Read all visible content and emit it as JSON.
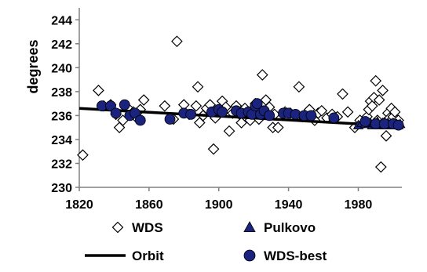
{
  "chart_data": {
    "type": "scatter",
    "ylabel": "degrees",
    "xlabel": "",
    "xlim": [
      1820,
      2005
    ],
    "ylim": [
      230,
      245
    ],
    "x_ticks": [
      "1820",
      "1860",
      "1900",
      "1940",
      "1980"
    ],
    "y_ticks": [
      "230",
      "232",
      "234",
      "236",
      "238",
      "240",
      "242",
      "244"
    ],
    "grid": false,
    "legend_position": "bottom",
    "legend": [
      {
        "label": "WDS",
        "marker": "open-diamond"
      },
      {
        "label": "Pulkovo",
        "marker": "filled-triangle"
      },
      {
        "label": "Orbit",
        "marker": "line"
      },
      {
        "label": "WDS-best",
        "marker": "filled-circle"
      }
    ],
    "colors": {
      "WDS-best": "#1a237e",
      "Pulkovo": "#1a237e",
      "Orbit": "#000000",
      "WDS": "#000000"
    },
    "series": [
      {
        "name": "WDS",
        "points": [
          [
            1822,
            232.7
          ],
          [
            1831,
            238.1
          ],
          [
            1834,
            236.8
          ],
          [
            1838,
            236.9
          ],
          [
            1841,
            236.1
          ],
          [
            1843,
            235.0
          ],
          [
            1845,
            235.6
          ],
          [
            1848,
            236.6
          ],
          [
            1851,
            236.3
          ],
          [
            1853,
            235.8
          ],
          [
            1855,
            236.5
          ],
          [
            1857,
            237.3
          ],
          [
            1869,
            236.8
          ],
          [
            1874,
            235.7
          ],
          [
            1876,
            242.2
          ],
          [
            1880,
            236.9
          ],
          [
            1883,
            236.1
          ],
          [
            1887,
            236.8
          ],
          [
            1888,
            238.4
          ],
          [
            1889,
            235.4
          ],
          [
            1891,
            236.0
          ],
          [
            1893,
            236.6
          ],
          [
            1895,
            236.9
          ],
          [
            1897,
            233.2
          ],
          [
            1898,
            235.8
          ],
          [
            1899,
            236.3
          ],
          [
            1902,
            237.2
          ],
          [
            1904,
            236.7
          ],
          [
            1906,
            234.7
          ],
          [
            1908,
            236.2
          ],
          [
            1910,
            236.8
          ],
          [
            1912,
            236.1
          ],
          [
            1913,
            235.4
          ],
          [
            1915,
            236.6
          ],
          [
            1917,
            236.0
          ],
          [
            1918,
            235.6
          ],
          [
            1920,
            236.4
          ],
          [
            1921,
            237.0
          ],
          [
            1922,
            236.2
          ],
          [
            1923,
            235.7
          ],
          [
            1925,
            239.4
          ],
          [
            1926,
            236.3
          ],
          [
            1927,
            237.3
          ],
          [
            1929,
            236.7
          ],
          [
            1931,
            235.0
          ],
          [
            1932,
            236.1
          ],
          [
            1934,
            235.0
          ],
          [
            1938,
            236.3
          ],
          [
            1941,
            236.2
          ],
          [
            1944,
            236.0
          ],
          [
            1946,
            238.4
          ],
          [
            1948,
            235.9
          ],
          [
            1950,
            236.1
          ],
          [
            1952,
            236.5
          ],
          [
            1955,
            235.6
          ],
          [
            1957,
            236.2
          ],
          [
            1959,
            236.4
          ],
          [
            1962,
            235.8
          ],
          [
            1965,
            236.1
          ],
          [
            1968,
            235.9
          ],
          [
            1971,
            237.8
          ],
          [
            1974,
            236.3
          ],
          [
            1978,
            235.0
          ],
          [
            1981,
            235.6
          ],
          [
            1983,
            235.4
          ],
          [
            1985,
            235.9
          ],
          [
            1986,
            236.5
          ],
          [
            1987,
            237.2
          ],
          [
            1988,
            236.8
          ],
          [
            1989,
            237.5
          ],
          [
            1990,
            238.9
          ],
          [
            1991,
            235.6
          ],
          [
            1992,
            237.3
          ],
          [
            1993,
            231.7
          ],
          [
            1994,
            238.1
          ],
          [
            1995,
            235.4
          ],
          [
            1996,
            234.3
          ],
          [
            1997,
            236.2
          ],
          [
            1998,
            235.8
          ],
          [
            1999,
            236.6
          ],
          [
            2000,
            235.9
          ],
          [
            2001,
            236.3
          ],
          [
            2002,
            235.3
          ],
          [
            2003,
            235.6
          ]
        ]
      },
      {
        "name": "WDS-best",
        "points": [
          [
            1833,
            236.8
          ],
          [
            1838,
            236.8
          ],
          [
            1841,
            236.2
          ],
          [
            1846,
            236.9
          ],
          [
            1849,
            236.0
          ],
          [
            1852,
            236.2
          ],
          [
            1855,
            235.6
          ],
          [
            1872,
            235.7
          ],
          [
            1880,
            236.2
          ],
          [
            1884,
            236.1
          ],
          [
            1896,
            236.3
          ],
          [
            1900,
            236.5
          ],
          [
            1902,
            236.3
          ],
          [
            1910,
            236.4
          ],
          [
            1913,
            236.2
          ],
          [
            1917,
            236.3
          ],
          [
            1919,
            236.1
          ],
          [
            1921,
            236.8
          ],
          [
            1922,
            237.0
          ],
          [
            1924,
            236.1
          ],
          [
            1926,
            236.4
          ],
          [
            1929,
            236.0
          ],
          [
            1937,
            236.2
          ],
          [
            1940,
            236.2
          ],
          [
            1944,
            236.1
          ],
          [
            1949,
            236.0
          ],
          [
            1953,
            236.0
          ],
          [
            1966,
            235.8
          ],
          [
            1984,
            235.5
          ],
          [
            1990,
            235.3
          ],
          [
            1995,
            235.3
          ],
          [
            2000,
            235.3
          ],
          [
            2003,
            235.2
          ]
        ]
      },
      {
        "name": "Pulkovo",
        "points": [
          [
            1980,
            235.2
          ],
          [
            1982,
            235.4
          ],
          [
            1984,
            235.3
          ],
          [
            1985,
            235.5
          ],
          [
            1986,
            235.3
          ],
          [
            1987,
            235.4
          ],
          [
            1988,
            235.2
          ],
          [
            1989,
            235.4
          ],
          [
            1990,
            235.3
          ],
          [
            1991,
            235.5
          ],
          [
            1992,
            235.2
          ],
          [
            1993,
            235.3
          ],
          [
            1994,
            235.4
          ],
          [
            1995,
            235.2
          ],
          [
            1996,
            235.3
          ],
          [
            1997,
            235.4
          ],
          [
            1998,
            235.2
          ],
          [
            1999,
            235.3
          ],
          [
            2000,
            235.4
          ],
          [
            2001,
            235.2
          ],
          [
            2002,
            235.3
          ],
          [
            2003,
            235.2
          ],
          [
            2004,
            235.3
          ]
        ]
      },
      {
        "name": "Orbit",
        "points": [
          [
            1820,
            236.6
          ],
          [
            2005,
            235.1
          ]
        ]
      }
    ]
  }
}
